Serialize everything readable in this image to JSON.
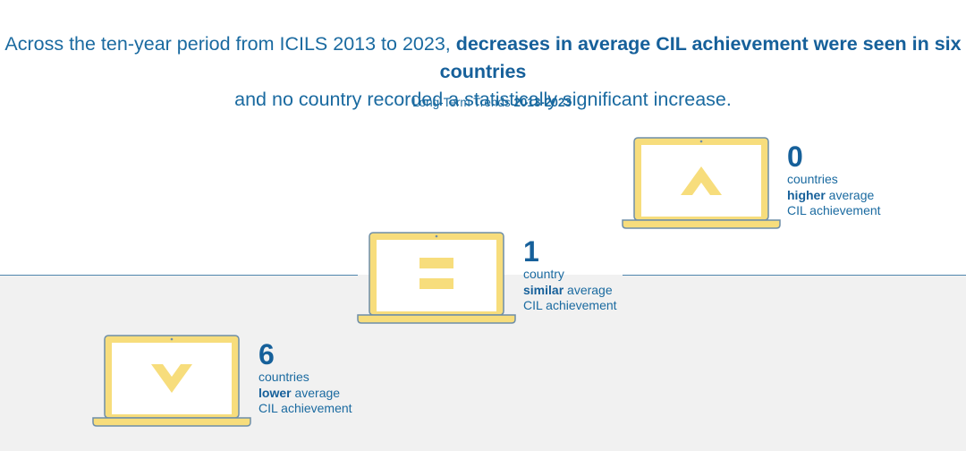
{
  "headline": {
    "part1": "Across the ten-year period from ICILS 2013 to 2023, ",
    "bold1": "decreases in average CIL achievement were seen in six countries",
    "part2": " and no country recorded a statistically significant increase."
  },
  "subtitle": {
    "prefix": "Long-Term Trends ",
    "years": "2013-2023"
  },
  "colors": {
    "accent_blue": "#1a6aa0",
    "laptop_yellow": "#f7dd7c",
    "laptop_outline": "#6e8ea8",
    "band_gray": "#f1f1f1"
  },
  "steps": [
    {
      "id": "higher",
      "icon": "up-chevron-icon",
      "count": "0",
      "line1": "countries",
      "bold": "higher",
      "line2_rest": " average",
      "line3": "CIL achievement"
    },
    {
      "id": "similar",
      "icon": "equals-icon",
      "count": "1",
      "line1": "country",
      "bold": "similar",
      "line2_rest": " average",
      "line3": "CIL achievement"
    },
    {
      "id": "lower",
      "icon": "down-chevron-icon",
      "count": "6",
      "line1": "countries",
      "bold": "lower",
      "line2_rest": " average",
      "line3": "CIL achievement"
    }
  ]
}
